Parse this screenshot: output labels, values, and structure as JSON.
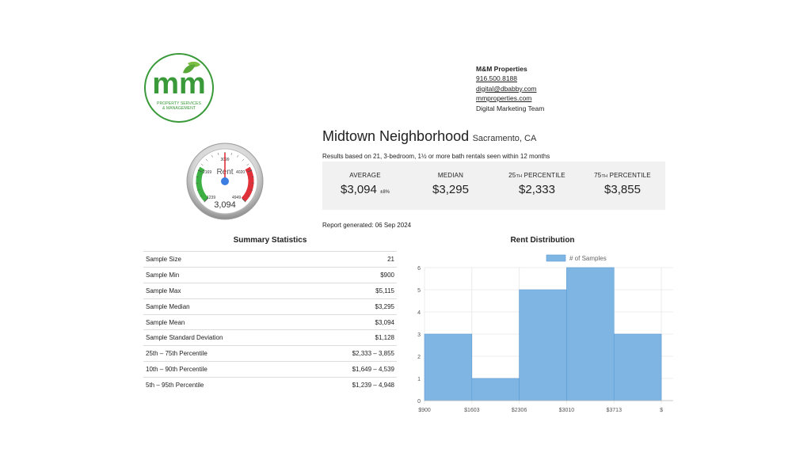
{
  "logo": {
    "letters": "mm",
    "tagline_line1": "PROPERTY SERVICES",
    "tagline_line2": "& MANAGEMENT",
    "green": "#3a9a3a",
    "leaf_color": "#7dbf42"
  },
  "contact": {
    "company": "M&M Properties",
    "phone": "916.500.8188",
    "email": "digital@dbabby.com",
    "website": "mmproperties.com",
    "team": "Digital Marketing Team"
  },
  "gauge": {
    "label": "Rent",
    "value_text": "3,094",
    "value": 3094,
    "min": 1239,
    "max": 4949,
    "ticks": [
      "1239",
      "2169",
      "3099",
      "4020",
      "4949"
    ],
    "green_color": "#3cb043",
    "red_color": "#e0303a",
    "needle_color": "#e0303a",
    "hub_color": "#3b7de0"
  },
  "header": {
    "neighborhood": "Midtown Neighborhood",
    "city": "Sacramento, CA",
    "results_note": "Results based on 21, 3-bedroom, 1½ or more bath rentals seen within 12 months"
  },
  "stats": [
    {
      "label": "AVERAGE",
      "value": "$3,094",
      "note": "±8%"
    },
    {
      "label": "MEDIAN",
      "value": "$3,295",
      "note": ""
    },
    {
      "label_prefix": "25",
      "label_sup": "TH",
      "label_rest": " PERCENTILE",
      "value": "$2,333",
      "note": ""
    },
    {
      "label_prefix": "75",
      "label_sup": "TH",
      "label_rest": " PERCENTILE",
      "value": "$3,855",
      "note": ""
    }
  ],
  "report_generated": "Report generated: 06 Sep 2024",
  "summary": {
    "title": "Summary Statistics",
    "rows": [
      {
        "label": "Sample Size",
        "value": "21"
      },
      {
        "label": "Sample Min",
        "value": "$900"
      },
      {
        "label": "Sample Max",
        "value": "$5,115"
      },
      {
        "label": "Sample Median",
        "value": "$3,295"
      },
      {
        "label": "Sample Mean",
        "value": "$3,094"
      },
      {
        "label": "Sample Standard Deviation",
        "value": "$1,128"
      },
      {
        "label": "25th – 75th Percentile",
        "value": "$2,333 – 3,855"
      },
      {
        "label": "10th – 90th Percentile",
        "value": "$1,649 – 4,539"
      },
      {
        "label": "5th – 95th Percentile",
        "value": "$1,239 – 4,948"
      }
    ]
  },
  "chart_data": {
    "type": "bar",
    "title": "Rent Distribution",
    "legend": "# of Samples",
    "legend_position": "top",
    "x_ticks": [
      "$900",
      "$1603",
      "$2306",
      "$3010",
      "$3713",
      "$"
    ],
    "values": [
      3,
      1,
      5,
      6,
      3
    ],
    "ylim": [
      0,
      6
    ],
    "y_ticks": [
      0,
      1,
      2,
      3,
      4,
      5,
      6
    ],
    "grid": true,
    "bar_color": "#7fb5e3",
    "bar_edge": "#5b9bd5"
  }
}
